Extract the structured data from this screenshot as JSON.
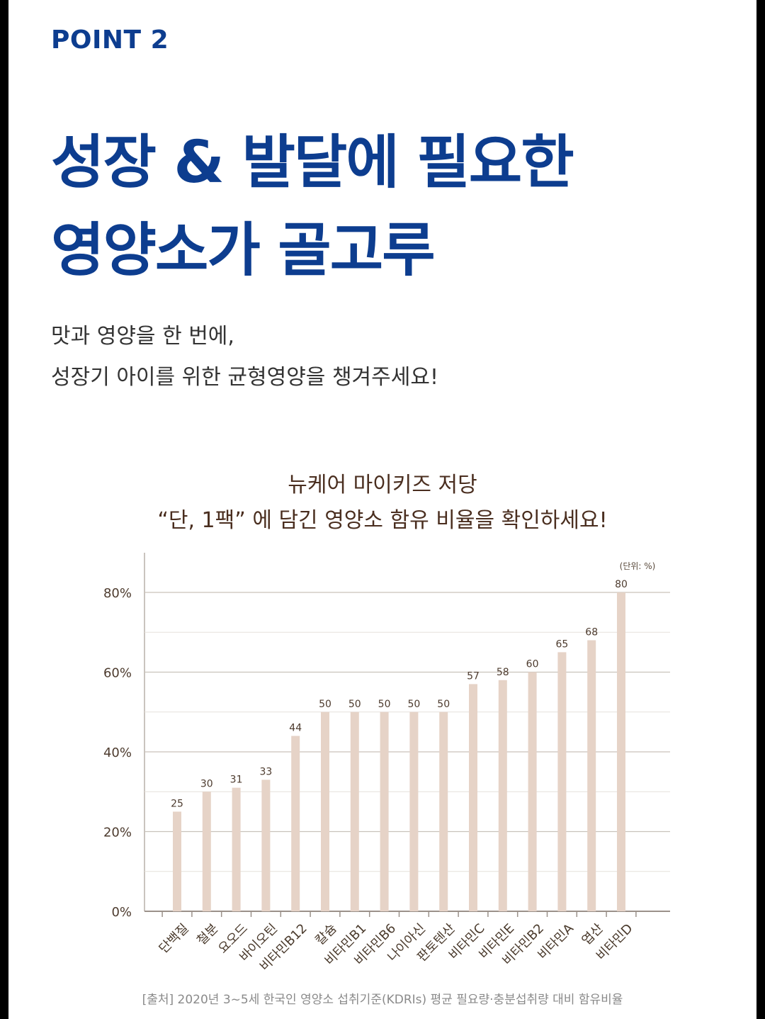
{
  "point_label": "POINT 2",
  "headline": {
    "line1": "성장 & 발달에 필요한",
    "line2": "영양소가 골고루"
  },
  "subtext": {
    "line1": "맛과 영양을 한 번에,",
    "line2": "성장기 아이를 위한 균형영양을 챙겨주세요!"
  },
  "chart_title": {
    "line1": "뉴케어 마이키즈 저당",
    "line2": "“단, 1팩” 에 담긴 영양소 함유 비율을 확인하세요!"
  },
  "chart_data": {
    "type": "bar",
    "categories": [
      "단백질",
      "철분",
      "요오드",
      "바이오틴",
      "비타민B12",
      "칼슘",
      "비타민B1",
      "비타민B6",
      "나이아신",
      "판토텐산",
      "비타민C",
      "비타민E",
      "비타민B2",
      "비타민A",
      "엽산",
      "비타민D"
    ],
    "values": [
      25,
      30,
      31,
      33,
      44,
      50,
      50,
      50,
      50,
      50,
      57,
      58,
      60,
      65,
      68,
      80
    ],
    "value_labels": [
      "25",
      "30",
      "31",
      "33",
      "44",
      "50",
      "50",
      "50",
      "50",
      "50",
      "57",
      "58",
      "60",
      "65",
      "68",
      "80"
    ],
    "ylim": [
      0,
      80
    ],
    "yticks": [
      0,
      20,
      40,
      60,
      80
    ],
    "ytick_labels": [
      "0%",
      "20%",
      "40%",
      "60%",
      "80%"
    ],
    "unit_note": "(단위: %)",
    "grid": true,
    "bar_color": "#e6d3c7"
  },
  "source_note": "[출처] 2020년 3~5세 한국인 영양소 섭취기준(KDRIs) 평균 필요량·충분섭취량 대비 함유비율"
}
